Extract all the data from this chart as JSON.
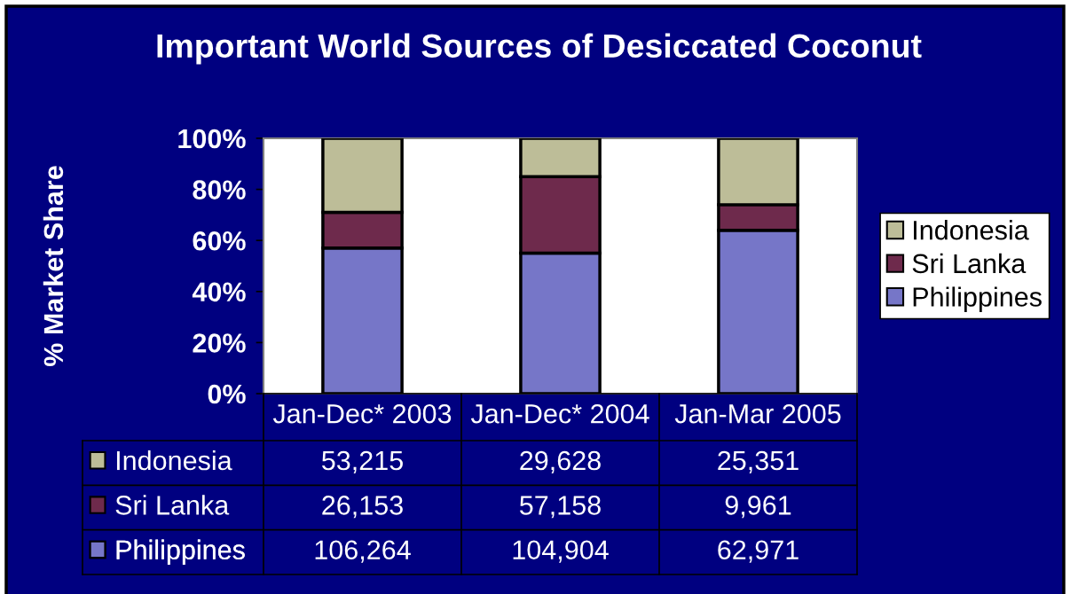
{
  "chart_data": [
    {
      "type": "bar",
      "title": "Important World Sources of Desiccated Coconut",
      "ylabel": "% Market Share",
      "stacked": true,
      "categories": [
        "Jan-Dec* 2003",
        "Jan-Dec* 2004",
        "Jan-Mar 2005"
      ],
      "series": [
        {
          "name": "Philippines",
          "color": "#7676c8",
          "values": [
            57,
            55,
            64
          ]
        },
        {
          "name": "Sri Lanka",
          "color": "#6e2a4c",
          "values": [
            14,
            30,
            10
          ]
        },
        {
          "name": "Indonesia",
          "color": "#bdbd98",
          "values": [
            29,
            15,
            26
          ]
        }
      ],
      "ylim": [
        0,
        100
      ],
      "yticks": [
        {
          "value": 0,
          "label": "0%"
        },
        {
          "value": 20,
          "label": "20%"
        },
        {
          "value": 40,
          "label": "40%"
        },
        {
          "value": 60,
          "label": "60%"
        },
        {
          "value": 80,
          "label": "80%"
        },
        {
          "value": 100,
          "label": "100%"
        }
      ],
      "grid": false,
      "legend": "right"
    },
    {
      "type": "other",
      "series": [
        {
          "name": "Indonesia",
          "color": "#bdbd98"
        },
        {
          "name": "Sri Lanka",
          "color": "#6e2a4c"
        },
        {
          "name": "Philippines",
          "color": "#7676c8"
        }
      ],
      "annotations": [
        "53,215",
        "29,628",
        "25,351",
        "26,153",
        "57,158",
        "9,961",
        "106,264",
        "104,904",
        "62,971"
      ],
      "legend": "left"
    }
  ]
}
